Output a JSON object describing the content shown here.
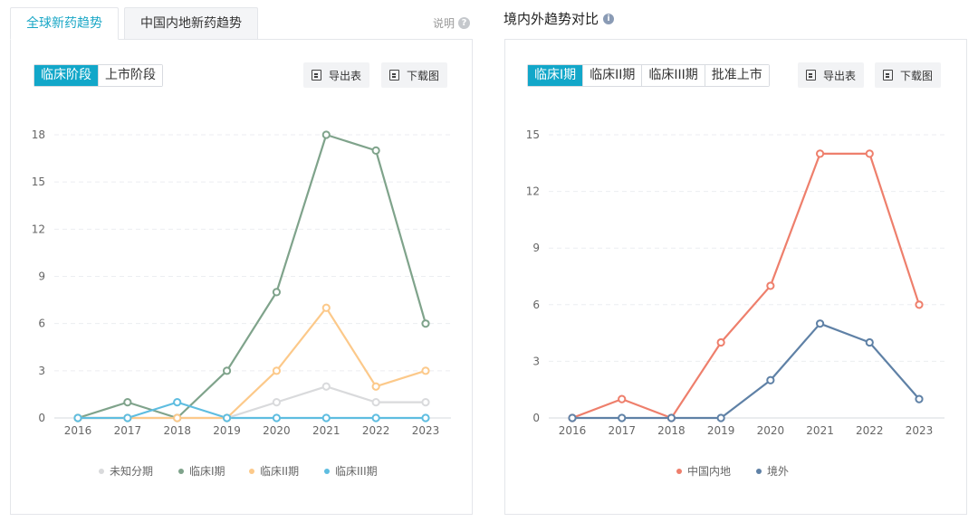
{
  "left": {
    "tabs": [
      "全球新药趋势",
      "中国内地新药趋势"
    ],
    "active_tab": 0,
    "help_label": "说明",
    "segments": [
      "临床阶段",
      "上市阶段"
    ],
    "active_segment": 0,
    "export_label": "导出表",
    "download_label": "下载图"
  },
  "right": {
    "title": "境内外趋势对比",
    "segments": [
      "临床I期",
      "临床II期",
      "临床III期",
      "批准上市"
    ],
    "active_segment": 0,
    "export_label": "导出表",
    "download_label": "下载图"
  },
  "chart_data": [
    {
      "type": "line",
      "x": [
        2016,
        2017,
        2018,
        2019,
        2020,
        2021,
        2022,
        2023
      ],
      "ylim": [
        0,
        18
      ],
      "yticks": [
        0,
        3,
        6,
        9,
        12,
        15,
        18
      ],
      "grid": true,
      "legend_position": "bottom",
      "series": [
        {
          "name": "未知分期",
          "color": "#d9dadc",
          "values": [
            0,
            0,
            0,
            0,
            1,
            2,
            1,
            1
          ]
        },
        {
          "name": "临床I期",
          "color": "#7fa38b",
          "values": [
            0,
            1,
            0,
            3,
            8,
            18,
            17,
            6
          ]
        },
        {
          "name": "临床II期",
          "color": "#fcc98a",
          "values": [
            0,
            0,
            0,
            0,
            3,
            7,
            2,
            3
          ]
        },
        {
          "name": "临床III期",
          "color": "#5ebde0",
          "values": [
            0,
            0,
            1,
            0,
            0,
            0,
            0,
            0
          ]
        }
      ]
    },
    {
      "type": "line",
      "x": [
        2016,
        2017,
        2018,
        2019,
        2020,
        2021,
        2022,
        2023
      ],
      "ylim": [
        0,
        15
      ],
      "yticks": [
        0,
        3,
        6,
        9,
        12,
        15
      ],
      "grid": true,
      "legend_position": "bottom",
      "series": [
        {
          "name": "中国内地",
          "color": "#ee7f6c",
          "values": [
            0,
            1,
            0,
            4,
            7,
            14,
            14,
            6
          ]
        },
        {
          "name": "境外",
          "color": "#5f81a6",
          "values": [
            0,
            0,
            0,
            0,
            2,
            5,
            4,
            1
          ]
        }
      ]
    }
  ]
}
